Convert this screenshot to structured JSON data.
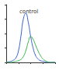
{
  "chart_data": {
    "type": "line",
    "title": "control",
    "x": [
      0,
      5,
      10,
      15,
      20,
      25,
      30,
      35,
      40,
      45,
      50,
      55,
      60,
      65,
      70,
      75,
      80,
      85,
      90,
      95,
      100
    ],
    "series": [
      {
        "color": "#3a5fcd",
        "values": [
          0,
          1,
          2,
          4,
          8,
          20,
          45,
          75,
          85,
          70,
          45,
          25,
          12,
          6,
          3,
          2,
          1,
          0,
          0,
          0,
          0
        ]
      },
      {
        "color": "#3cb44b",
        "values": [
          0,
          0,
          0,
          1,
          2,
          3,
          5,
          10,
          20,
          35,
          45,
          40,
          30,
          20,
          12,
          6,
          3,
          1,
          0,
          0,
          0
        ]
      }
    ],
    "xlim": [
      0,
      100
    ],
    "ylim": [
      0,
      100
    ],
    "xticks": [
      0,
      25,
      50,
      75,
      100
    ],
    "yticks": [
      0,
      25,
      50,
      75,
      100
    ],
    "grid": false,
    "tick_labels": false
  }
}
